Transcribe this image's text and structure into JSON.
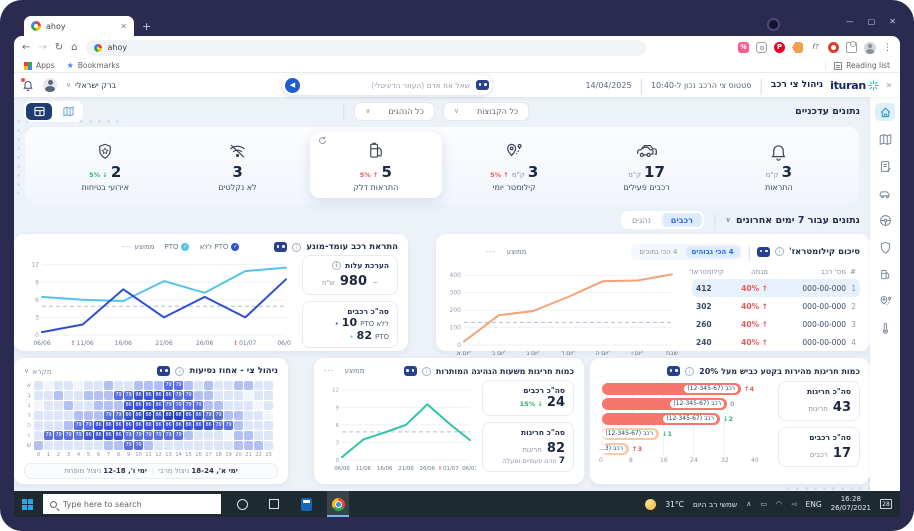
{
  "browser": {
    "tab": "ahoy",
    "url": "ahoy",
    "apps": "Apps",
    "bookmarks": "Bookmarks",
    "reading_list": "Reading list"
  },
  "taskbar": {
    "search": "Type here to search",
    "weather_temp": "31°C",
    "weather_desc": "שמשי רב היום",
    "lang": "ENG",
    "time": "16:28",
    "date": "26/07/2021",
    "badge": "28"
  },
  "header": {
    "logo": "ituran",
    "title": "ניהול צי רכב",
    "status": "סטטוס צי הרכב נכון ל-10:40",
    "date": "14/04/2025",
    "user": "ברק ישראלי",
    "assistant_placeholder": "שאל את אדם (העוזר הדיגיטלי)"
  },
  "filters": {
    "section_title": "נתונים עדכניים",
    "drivers": "כל הנהגים",
    "groups": "כל הקבוצות"
  },
  "kpis": [
    {
      "id": "alerts",
      "label": "התראות",
      "value": "3",
      "unit": "ק\"מ",
      "icon": "bell-icon"
    },
    {
      "id": "active-vehicles",
      "label": "רכבים פעילים",
      "value": "17",
      "unit": "ק\"מ",
      "icon": "vehicles-icon"
    },
    {
      "id": "daily-km",
      "label": "קילומטר יומי",
      "value": "3",
      "unit": "ק\"מ",
      "trend": "5%",
      "trend_dir": "up",
      "icon": "route-icon"
    },
    {
      "id": "fuel-alerts",
      "label": "התראות דלק",
      "value": "5",
      "trend": "5%",
      "trend_dir": "up",
      "icon": "fuel-icon",
      "highlighted": true
    },
    {
      "id": "no-signal",
      "label": "לא נקלטים",
      "value": "3",
      "icon": "no-signal-icon"
    },
    {
      "id": "safety-events",
      "label": "אירועי בטיחות",
      "value": "2",
      "trend": "5%",
      "trend_dir": "down",
      "icon": "safety-icon"
    }
  ],
  "period": {
    "title": "נתונים עבור 7 ימים אחרונים",
    "tabs": [
      {
        "label": "רכבים",
        "active": true
      },
      {
        "label": "נהגים",
        "active": false
      }
    ]
  },
  "km_card": {
    "title": "סיכום קילומטראז'",
    "tabs": [
      {
        "label": "4 הכי גבוהים",
        "active": true
      },
      {
        "label": "4 הכי נמוכים",
        "active": false
      }
    ],
    "legend_avg": "ממוצע",
    "table_headers": [
      "#",
      "מס' רכב",
      "מגמה",
      "קילומטראז'"
    ],
    "table_rows": [
      {
        "n": "1",
        "vehicle": "000-00-000",
        "trend": "40%",
        "km": "412"
      },
      {
        "n": "2",
        "vehicle": "000-00-000",
        "trend": "40%",
        "km": "302"
      },
      {
        "n": "3",
        "vehicle": "000-00-000",
        "trend": "40%",
        "km": "260"
      },
      {
        "n": "4",
        "vehicle": "000-00-000",
        "trend": "40%",
        "km": "240"
      }
    ]
  },
  "pto_card": {
    "title": "התראת רכב עומד-מונע",
    "legend_avg": "ממוצע",
    "legend_pto": "PTO",
    "legend_no_pto": "ללא PTO",
    "cost_label": "הערכת עלות",
    "cost_approx": "~",
    "cost_value": "980",
    "cost_unit": "ש\"ח",
    "vehicles_label": "סה\"כ רכבים",
    "no_pto_label": "ללא PTO",
    "no_pto_value": "10",
    "pto_label": "PTO",
    "pto_value": "82"
  },
  "speed_card": {
    "title": "כמות חריגות מהירות בקטע כביש מעל 20%",
    "stat1_label": "סה\"כ חריגות",
    "stat1_value": "43",
    "stat1_unit": "חריגות",
    "stat2_label": "סה\"כ רכבים",
    "stat2_value": "17",
    "stat2_unit": "רכבים"
  },
  "hours_card": {
    "title": "כמות חריגות משעות הנהיגה המותרות",
    "legend_avg": "ממוצע",
    "stat1_label": "סה\"כ רכבים",
    "stat1_value": "24",
    "stat1_trend": "15%",
    "stat2_label": "סה\"כ חריגות",
    "stat2_value": "82",
    "stat2_unit": "חריגות",
    "stat2_extra_value": "7",
    "stat2_extra": "חרגו פעמיים ומעלה"
  },
  "heatmap_card": {
    "title": "ניהול צי - אחוז נסיעות",
    "legend_label": "מקרא",
    "note_bold1": "ימי א', 18-24",
    "note_text1": "ניצול מרבי",
    "note_bold2": "ימי ו', 12-18",
    "note_text2": "ניצול מופחת"
  },
  "chart_data": [
    {
      "id": "km_summary",
      "type": "line",
      "title": "סיכום קילומטראז'",
      "categories": [
        "יום א'",
        "יום ב'",
        "יום ג'",
        "יום ד'",
        "יום ה'",
        "יום ו'",
        "שבת"
      ],
      "series": [
        {
          "name": "קילומטראז'",
          "color": "#f5a076",
          "values": [
            20,
            170,
            195,
            275,
            365,
            370,
            405
          ]
        }
      ],
      "average": 130,
      "yticks": [
        0,
        100,
        200,
        300,
        400
      ],
      "ylim": [
        0,
        430
      ]
    },
    {
      "id": "pto_alert",
      "type": "line",
      "title": "התראת רכב עומד-מונע",
      "x_labels": [
        "06/06",
        "11/06",
        "16/06",
        "21/06",
        "26/06",
        "01/07",
        "06/07"
      ],
      "alerts": [
        "11/06",
        "01/07"
      ],
      "series": [
        {
          "name": "PTO",
          "color": "#55c3e8",
          "values": [
            6.5,
            6,
            5.8,
            9.2,
            7.2,
            10.9,
            11.5
          ]
        },
        {
          "name": "ללא PTO",
          "color": "#2d50d3",
          "values": [
            0.5,
            1.8,
            7.8,
            3,
            6.5,
            3,
            9.5
          ]
        }
      ],
      "average": 4.9,
      "yticks": [
        0,
        3,
        6,
        9,
        12
      ],
      "ylim": [
        0,
        12.8
      ]
    },
    {
      "id": "speed_violations",
      "type": "bar",
      "xticks": [
        0,
        8,
        16,
        24,
        32,
        40
      ],
      "xmax": 40,
      "bars": [
        {
          "label": "רכב (12-345-67)",
          "value": 37,
          "trend": "4",
          "trend_dir": "up",
          "shade": "dark"
        },
        {
          "label": "רכב (12-345-67)",
          "value": 33,
          "trend": "0",
          "trend_dir": "flat",
          "shade": "dark"
        },
        {
          "label": "רכב (12-345-67)",
          "value": 31,
          "trend": "2",
          "trend_dir": "down",
          "shade": "dark"
        },
        {
          "label": "רכב (12-345-67)",
          "value": 15,
          "trend": "1",
          "trend_dir": "down",
          "shade": "light"
        },
        {
          "label": "רכב (3...",
          "value": 7,
          "trend": "3",
          "trend_dir": "up",
          "shade": "light"
        }
      ]
    },
    {
      "id": "driving_hours",
      "type": "line",
      "x_labels": [
        "06/06",
        "11/06",
        "16/06",
        "21/06",
        "26/06",
        "01/07",
        "06/07"
      ],
      "alerts": [
        "01/07"
      ],
      "series": [
        {
          "name": "חריגות",
          "color": "#2ec4a5",
          "values": [
            0.5,
            3.5,
            4.7,
            6,
            9.5,
            6.3,
            3.4
          ]
        }
      ],
      "average": 4.8,
      "yticks": [
        0,
        3,
        6,
        9,
        12
      ],
      "ylim": [
        0,
        12.8
      ]
    },
    {
      "id": "trips_heatmap",
      "type": "heatmap",
      "row_labels": [
        "א",
        "ב",
        "ג",
        "ד",
        "ה",
        "ו",
        "ש"
      ],
      "col_labels": [
        "0",
        "1",
        "2",
        "3",
        "4",
        "5",
        "6",
        "7",
        "8",
        "9",
        "10",
        "11",
        "12",
        "13",
        "14",
        "15",
        "16",
        "17",
        "18",
        "19",
        "20",
        "21",
        "22",
        "23"
      ],
      "matrix": [
        [
          1,
          0,
          1,
          1,
          0,
          1,
          1,
          2,
          1,
          1,
          2,
          2,
          2,
          79,
          79,
          2,
          1,
          2,
          1,
          1,
          2,
          2,
          1,
          1
        ],
        [
          1,
          1,
          2,
          1,
          1,
          2,
          2,
          2,
          79,
          79,
          86,
          86,
          86,
          86,
          79,
          79,
          2,
          2,
          1,
          1,
          1,
          0,
          1,
          1
        ],
        [
          0,
          1,
          1,
          2,
          1,
          1,
          2,
          2,
          2,
          86,
          86,
          86,
          86,
          79,
          79,
          79,
          79,
          2,
          2,
          1,
          1,
          1,
          0,
          1
        ],
        [
          1,
          1,
          1,
          1,
          2,
          2,
          2,
          79,
          79,
          86,
          86,
          88,
          86,
          88,
          88,
          86,
          86,
          79,
          79,
          2,
          2,
          1,
          1,
          0
        ],
        [
          1,
          1,
          1,
          2,
          79,
          79,
          86,
          86,
          86,
          86,
          86,
          86,
          86,
          86,
          86,
          86,
          86,
          86,
          79,
          79,
          2,
          1,
          1,
          1
        ],
        [
          1,
          79,
          79,
          79,
          79,
          86,
          86,
          86,
          86,
          79,
          79,
          79,
          79,
          79,
          79,
          2,
          1,
          1,
          1,
          0,
          2,
          2,
          1,
          1
        ],
        [
          2,
          1,
          1,
          1,
          1,
          1,
          1,
          2,
          2,
          79,
          79,
          2,
          1,
          1,
          1,
          1,
          1,
          1,
          1,
          1,
          2,
          2,
          2,
          1
        ]
      ]
    }
  ]
}
